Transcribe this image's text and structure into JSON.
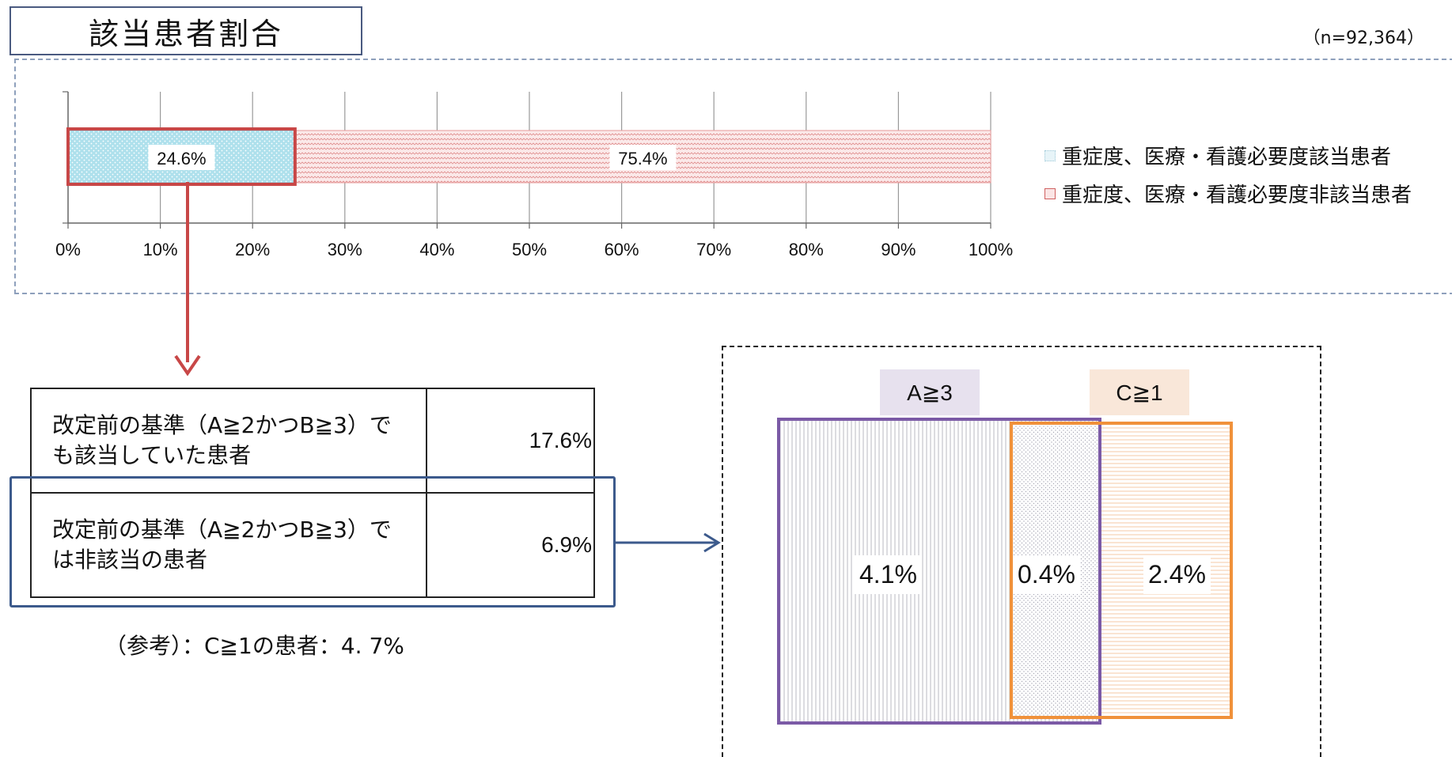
{
  "title": "該当患者割合",
  "n_label": "（n=92,364）",
  "chart_data": {
    "type": "bar",
    "orientation": "horizontal",
    "stacked": true,
    "xlim": [
      0,
      100
    ],
    "x_ticks": [
      "0%",
      "10%",
      "20%",
      "30%",
      "40%",
      "50%",
      "60%",
      "70%",
      "80%",
      "90%",
      "100%"
    ],
    "grid": true,
    "legend_position": "right",
    "series": [
      {
        "name": "重症度、医療・看護必要度該当患者",
        "value": 24.6,
        "label": "24.6%",
        "color": "#aee0ec"
      },
      {
        "name": "重症度、医療・看護必要度非該当患者",
        "value": 75.4,
        "label": "75.4%",
        "color": "#f7dada"
      }
    ]
  },
  "breakdown": {
    "rows": [
      {
        "label": "改定前の基準（A≧2かつB≧3）でも該当していた患者",
        "value": "17.6%"
      },
      {
        "label": "改定前の基準（A≧2かつB≧3）では非該当の患者",
        "value": "6.9%"
      }
    ]
  },
  "reference_note": "（参考）：C≧1の患者：4. 7%",
  "venn": {
    "label_a": "A≧3",
    "label_c": "C≧1",
    "only_a": "4.1%",
    "overlap": "0.4%",
    "only_c": "2.4%",
    "colors": {
      "a": "#7b5aa6",
      "c": "#f0913a"
    }
  },
  "colors": {
    "highlight_red": "#c84747",
    "highlight_blue": "#3c5a8c"
  }
}
